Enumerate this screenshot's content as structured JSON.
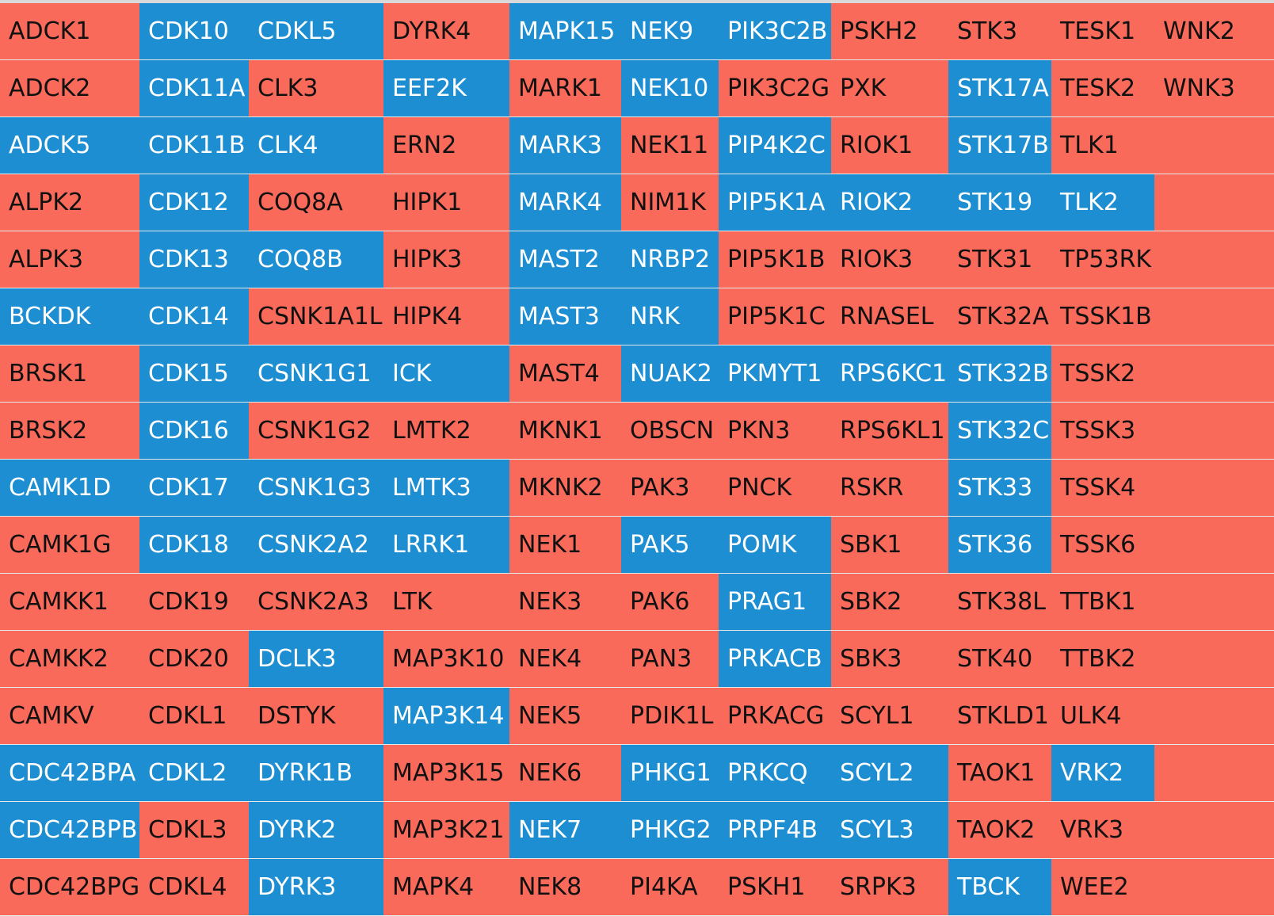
{
  "colors": {
    "red": "#fa6a5a",
    "blue": "#1c8ed1",
    "red_text": "#111111",
    "blue_text": "#ffffff",
    "separator": "#e8e8e8",
    "background": "#d9d9d9"
  },
  "rows": [
    [
      [
        "ADCK1",
        "r"
      ],
      [
        "CDK10",
        "b"
      ],
      [
        "CDKL5",
        "b"
      ],
      [
        "DYRK4",
        "r"
      ],
      [
        "MAPK15",
        "b"
      ],
      [
        "NEK9",
        "b"
      ],
      [
        "PIK3C2B",
        "b"
      ],
      [
        "PSKH2",
        "r"
      ],
      [
        "STK3",
        "r"
      ],
      [
        "TESK1",
        "r"
      ],
      [
        "WNK2",
        "r"
      ]
    ],
    [
      [
        "ADCK2",
        "r"
      ],
      [
        "CDK11A",
        "b"
      ],
      [
        "CLK3",
        "r"
      ],
      [
        "EEF2K",
        "b"
      ],
      [
        "MARK1",
        "r"
      ],
      [
        "NEK10",
        "b"
      ],
      [
        "PIK3C2G",
        "r"
      ],
      [
        "PXK",
        "r"
      ],
      [
        "STK17A",
        "b"
      ],
      [
        "TESK2",
        "r"
      ],
      [
        "WNK3",
        "r"
      ]
    ],
    [
      [
        "ADCK5",
        "b"
      ],
      [
        "CDK11B",
        "b"
      ],
      [
        "CLK4",
        "b"
      ],
      [
        "ERN2",
        "r"
      ],
      [
        "MARK3",
        "b"
      ],
      [
        "NEK11",
        "r"
      ],
      [
        "PIP4K2C",
        "b"
      ],
      [
        "RIOK1",
        "r"
      ],
      [
        "STK17B",
        "b"
      ],
      [
        "TLK1",
        "r"
      ],
      [
        "",
        "r"
      ]
    ],
    [
      [
        "ALPK2",
        "r"
      ],
      [
        "CDK12",
        "b"
      ],
      [
        "COQ8A",
        "r"
      ],
      [
        "HIPK1",
        "r"
      ],
      [
        "MARK4",
        "b"
      ],
      [
        "NIM1K",
        "r"
      ],
      [
        "PIP5K1A",
        "b"
      ],
      [
        "RIOK2",
        "b"
      ],
      [
        "STK19",
        "b"
      ],
      [
        "TLK2",
        "b"
      ],
      [
        "",
        "r"
      ]
    ],
    [
      [
        "ALPK3",
        "r"
      ],
      [
        "CDK13",
        "b"
      ],
      [
        "COQ8B",
        "b"
      ],
      [
        "HIPK3",
        "r"
      ],
      [
        "MAST2",
        "b"
      ],
      [
        "NRBP2",
        "b"
      ],
      [
        "PIP5K1B",
        "r"
      ],
      [
        "RIOK3",
        "r"
      ],
      [
        "STK31",
        "r"
      ],
      [
        "TP53RK",
        "r"
      ],
      [
        "",
        "r"
      ]
    ],
    [
      [
        "BCKDK",
        "b"
      ],
      [
        "CDK14",
        "b"
      ],
      [
        "CSNK1A1L",
        "r"
      ],
      [
        "HIPK4",
        "r"
      ],
      [
        "MAST3",
        "b"
      ],
      [
        "NRK",
        "b"
      ],
      [
        "PIP5K1C",
        "r"
      ],
      [
        "RNASEL",
        "r"
      ],
      [
        "STK32A",
        "r"
      ],
      [
        "TSSK1B",
        "r"
      ],
      [
        "",
        "r"
      ]
    ],
    [
      [
        "BRSK1",
        "r"
      ],
      [
        "CDK15",
        "b"
      ],
      [
        "CSNK1G1",
        "b"
      ],
      [
        "ICK",
        "b"
      ],
      [
        "MAST4",
        "r"
      ],
      [
        "NUAK2",
        "b"
      ],
      [
        "PKMYT1",
        "b"
      ],
      [
        "RPS6KC1",
        "b"
      ],
      [
        "STK32B",
        "b"
      ],
      [
        "TSSK2",
        "r"
      ],
      [
        "",
        "r"
      ]
    ],
    [
      [
        "BRSK2",
        "r"
      ],
      [
        "CDK16",
        "b"
      ],
      [
        "CSNK1G2",
        "r"
      ],
      [
        "LMTK2",
        "r"
      ],
      [
        "MKNK1",
        "r"
      ],
      [
        "OBSCN",
        "r"
      ],
      [
        "PKN3",
        "r"
      ],
      [
        "RPS6KL1",
        "r"
      ],
      [
        "STK32C",
        "b"
      ],
      [
        "TSSK3",
        "r"
      ],
      [
        "",
        "r"
      ]
    ],
    [
      [
        "CAMK1D",
        "b"
      ],
      [
        "CDK17",
        "b"
      ],
      [
        "CSNK1G3",
        "b"
      ],
      [
        "LMTK3",
        "b"
      ],
      [
        "MKNK2",
        "r"
      ],
      [
        "PAK3",
        "r"
      ],
      [
        "PNCK",
        "r"
      ],
      [
        "RSKR",
        "r"
      ],
      [
        "STK33",
        "b"
      ],
      [
        "TSSK4",
        "r"
      ],
      [
        "",
        "r"
      ]
    ],
    [
      [
        "CAMK1G",
        "r"
      ],
      [
        "CDK18",
        "b"
      ],
      [
        "CSNK2A2",
        "b"
      ],
      [
        "LRRK1",
        "b"
      ],
      [
        "NEK1",
        "r"
      ],
      [
        "PAK5",
        "b"
      ],
      [
        "POMK",
        "b"
      ],
      [
        "SBK1",
        "r"
      ],
      [
        "STK36",
        "b"
      ],
      [
        "TSSK6",
        "r"
      ],
      [
        "",
        "r"
      ]
    ],
    [
      [
        "CAMKK1",
        "r"
      ],
      [
        "CDK19",
        "r"
      ],
      [
        "CSNK2A3",
        "r"
      ],
      [
        "LTK",
        "r"
      ],
      [
        "NEK3",
        "r"
      ],
      [
        "PAK6",
        "r"
      ],
      [
        "PRAG1",
        "b"
      ],
      [
        "SBK2",
        "r"
      ],
      [
        "STK38L",
        "r"
      ],
      [
        "TTBK1",
        "r"
      ],
      [
        "",
        "r"
      ]
    ],
    [
      [
        "CAMKK2",
        "r"
      ],
      [
        "CDK20",
        "r"
      ],
      [
        "DCLK3",
        "b"
      ],
      [
        "MAP3K10",
        "r"
      ],
      [
        "NEK4",
        "r"
      ],
      [
        "PAN3",
        "r"
      ],
      [
        "PRKACB",
        "b"
      ],
      [
        "SBK3",
        "r"
      ],
      [
        "STK40",
        "r"
      ],
      [
        "TTBK2",
        "r"
      ],
      [
        "",
        "r"
      ]
    ],
    [
      [
        "CAMKV",
        "r"
      ],
      [
        "CDKL1",
        "r"
      ],
      [
        "DSTYK",
        "r"
      ],
      [
        "MAP3K14",
        "b"
      ],
      [
        "NEK5",
        "r"
      ],
      [
        "PDIK1L",
        "r"
      ],
      [
        "PRKACG",
        "r"
      ],
      [
        "SCYL1",
        "r"
      ],
      [
        "STKLD1",
        "r"
      ],
      [
        "ULK4",
        "r"
      ],
      [
        "",
        "r"
      ]
    ],
    [
      [
        "CDC42BPA",
        "b"
      ],
      [
        "CDKL2",
        "b"
      ],
      [
        "DYRK1B",
        "b"
      ],
      [
        "MAP3K15",
        "r"
      ],
      [
        "NEK6",
        "r"
      ],
      [
        "PHKG1",
        "b"
      ],
      [
        "PRKCQ",
        "b"
      ],
      [
        "SCYL2",
        "b"
      ],
      [
        "TAOK1",
        "r"
      ],
      [
        "VRK2",
        "b"
      ],
      [
        "",
        "r"
      ]
    ],
    [
      [
        "CDC42BPB",
        "b"
      ],
      [
        "CDKL3",
        "r"
      ],
      [
        "DYRK2",
        "b"
      ],
      [
        "MAP3K21",
        "r"
      ],
      [
        "NEK7",
        "b"
      ],
      [
        "PHKG2",
        "b"
      ],
      [
        "PRPF4B",
        "b"
      ],
      [
        "SCYL3",
        "b"
      ],
      [
        "TAOK2",
        "r"
      ],
      [
        "VRK3",
        "r"
      ],
      [
        "",
        "r"
      ]
    ],
    [
      [
        "CDC42BPG",
        "r"
      ],
      [
        "CDKL4",
        "r"
      ],
      [
        "DYRK3",
        "b"
      ],
      [
        "MAPK4",
        "r"
      ],
      [
        "NEK8",
        "r"
      ],
      [
        "PI4KA",
        "r"
      ],
      [
        "PSKH1",
        "r"
      ],
      [
        "SRPK3",
        "r"
      ],
      [
        "TBCK",
        "b"
      ],
      [
        "WEE2",
        "r"
      ],
      [
        "",
        "r"
      ]
    ]
  ]
}
